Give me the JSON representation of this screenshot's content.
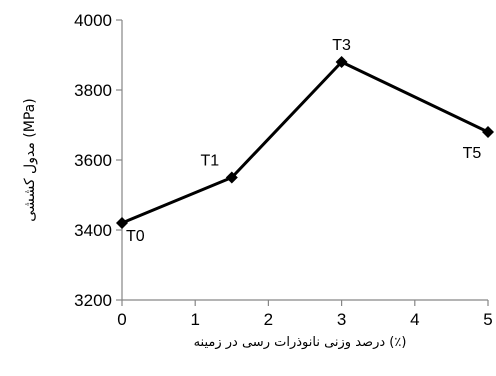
{
  "chart_data": {
    "type": "line",
    "x": [
      0,
      1.5,
      3,
      5
    ],
    "y": [
      3420,
      3550,
      3880,
      3680
    ],
    "point_labels": [
      "T0",
      "T1",
      "T3",
      "T5"
    ],
    "xlim": [
      0,
      5
    ],
    "ylim": [
      3200,
      4000
    ],
    "x_ticks": [
      0,
      1,
      2,
      3,
      4,
      5
    ],
    "y_ticks": [
      3200,
      3400,
      3600,
      3800,
      4000
    ],
    "xlabel": "درصد وزنی نانوذرات رسی در زمینه (٪)",
    "ylabel": "مدول کششی (MPa)",
    "grid": false,
    "legend": "none",
    "line_color": "#000000",
    "marker": "diamond"
  }
}
